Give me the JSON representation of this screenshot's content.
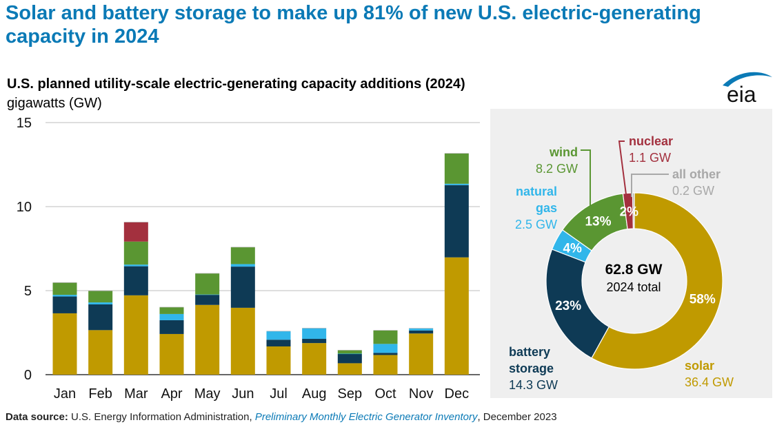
{
  "headline": "Solar and battery storage to make up 81% of new U.S. electric-generating capacity in 2024",
  "subtitle": "U.S. planned utility-scale electric-generating capacity additions (2024)",
  "unit_label": "gigawatts (GW)",
  "logo_text": "eia",
  "source": {
    "label": "Data source:",
    "org": "U.S. Energy Information Administration,",
    "publication": "Preliminary Monthly Electric Generator Inventory",
    "date": ", December 2023"
  },
  "colors": {
    "solar": "#c09a00",
    "battery": "#0e3a55",
    "natural_gas": "#31b6ea",
    "wind": "#5a9632",
    "nuclear": "#a3303e",
    "other": "#a8a8a8"
  },
  "chart_data": [
    {
      "type": "bar",
      "stacked": true,
      "title": "U.S. planned utility-scale electric-generating capacity additions (2024)",
      "ylabel": "gigawatts (GW)",
      "ylim": [
        0,
        15
      ],
      "yticks": [
        0,
        5,
        10,
        15
      ],
      "categories": [
        "Jan",
        "Feb",
        "Mar",
        "Apr",
        "May",
        "Jun",
        "Jul",
        "Aug",
        "Sep",
        "Oct",
        "Nov",
        "Dec"
      ],
      "series": [
        {
          "name": "solar",
          "color": "#c09a00",
          "values": [
            3.65,
            2.65,
            4.72,
            2.42,
            4.15,
            3.98,
            1.68,
            1.88,
            0.68,
            1.17,
            2.45,
            6.98
          ]
        },
        {
          "name": "battery storage",
          "color": "#0e3a55",
          "values": [
            1.0,
            1.53,
            1.73,
            0.82,
            0.6,
            2.45,
            0.4,
            0.25,
            0.55,
            0.13,
            0.18,
            4.3
          ]
        },
        {
          "name": "natural gas",
          "color": "#31b6ea",
          "values": [
            0.1,
            0.12,
            0.1,
            0.37,
            0.02,
            0.15,
            0.5,
            0.63,
            0.02,
            0.53,
            0.12,
            0.08
          ]
        },
        {
          "name": "wind",
          "color": "#5a9632",
          "values": [
            0.72,
            0.68,
            1.37,
            0.4,
            1.25,
            1.0,
            0.0,
            0.0,
            0.2,
            0.8,
            0.0,
            1.8
          ]
        },
        {
          "name": "nuclear",
          "color": "#a3303e",
          "values": [
            0,
            0,
            1.15,
            0,
            0,
            0,
            0,
            0,
            0,
            0,
            0,
            0
          ]
        },
        {
          "name": "all other",
          "color": "#a8a8a8",
          "values": [
            0.02,
            0.02,
            0.02,
            0.02,
            0.02,
            0.02,
            0.02,
            0.02,
            0.02,
            0.02,
            0.02,
            0.02
          ]
        }
      ]
    },
    {
      "type": "pie",
      "donut": true,
      "total_value": "62.8 GW",
      "total_label": "2024 total",
      "slices": [
        {
          "name": "solar",
          "value": 36.4,
          "value_label": "36.4 GW",
          "pct_label": "58%",
          "color": "#c09a00"
        },
        {
          "name": "battery storage",
          "value": 14.3,
          "value_label": "14.3 GW",
          "pct_label": "23%",
          "color": "#0e3a55"
        },
        {
          "name": "natural gas",
          "value": 2.5,
          "value_label": "2.5 GW",
          "pct_label": "4%",
          "color": "#31b6ea"
        },
        {
          "name": "wind",
          "value": 8.2,
          "value_label": "8.2 GW",
          "pct_label": "13%",
          "color": "#5a9632"
        },
        {
          "name": "nuclear",
          "value": 1.1,
          "value_label": "1.1 GW",
          "pct_label": "2%",
          "color": "#a3303e"
        },
        {
          "name": "all other",
          "value": 0.2,
          "value_label": "0.2 GW",
          "pct_label": "",
          "color": "#a8a8a8"
        }
      ],
      "label_texts": {
        "wind": "wind",
        "natural_gas_1": "natural",
        "natural_gas_2": "gas",
        "nuclear": "nuclear",
        "all_other": "all other",
        "battery_1": "battery",
        "battery_2": "storage",
        "solar": "solar"
      }
    }
  ]
}
